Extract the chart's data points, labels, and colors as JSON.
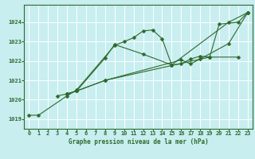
{
  "title": "Graphe pression niveau de la mer (hPa)",
  "bg_color": "#c8eef0",
  "grid_color": "#ffffff",
  "line_color": "#2d6a2d",
  "axis_bg": "#2d6a2d",
  "xlim": [
    -0.5,
    23.5
  ],
  "ylim": [
    1018.5,
    1024.9
  ],
  "yticks": [
    1019,
    1020,
    1021,
    1022,
    1023,
    1024
  ],
  "xticks": [
    0,
    1,
    2,
    3,
    4,
    5,
    6,
    7,
    8,
    9,
    10,
    11,
    12,
    13,
    14,
    15,
    16,
    17,
    18,
    19,
    20,
    21,
    22,
    23
  ],
  "series_full": [
    {
      "x": [
        0,
        1,
        4,
        5,
        9,
        10,
        11,
        12,
        13,
        14,
        15,
        21,
        23
      ],
      "y": [
        1019.2,
        1019.2,
        1020.2,
        1020.5,
        1022.8,
        1023.0,
        1023.2,
        1023.55,
        1023.6,
        1023.15,
        1021.8,
        1024.0,
        1024.5
      ]
    },
    {
      "x": [
        3,
        4,
        5,
        8,
        9,
        12,
        15,
        16,
        17,
        18,
        19,
        22
      ],
      "y": [
        1020.2,
        1020.3,
        1020.45,
        1022.15,
        1022.85,
        1022.35,
        1021.8,
        1021.85,
        1022.1,
        1022.25,
        1022.2,
        1022.2
      ]
    },
    {
      "x": [
        4,
        5,
        8,
        16,
        17,
        18,
        21,
        23
      ],
      "y": [
        1020.3,
        1020.45,
        1021.0,
        1022.05,
        1021.85,
        1022.1,
        1022.9,
        1024.5
      ]
    },
    {
      "x": [
        4,
        5,
        8,
        19,
        20,
        22,
        23
      ],
      "y": [
        1020.3,
        1020.45,
        1021.0,
        1022.2,
        1023.9,
        1024.0,
        1024.5
      ]
    }
  ]
}
